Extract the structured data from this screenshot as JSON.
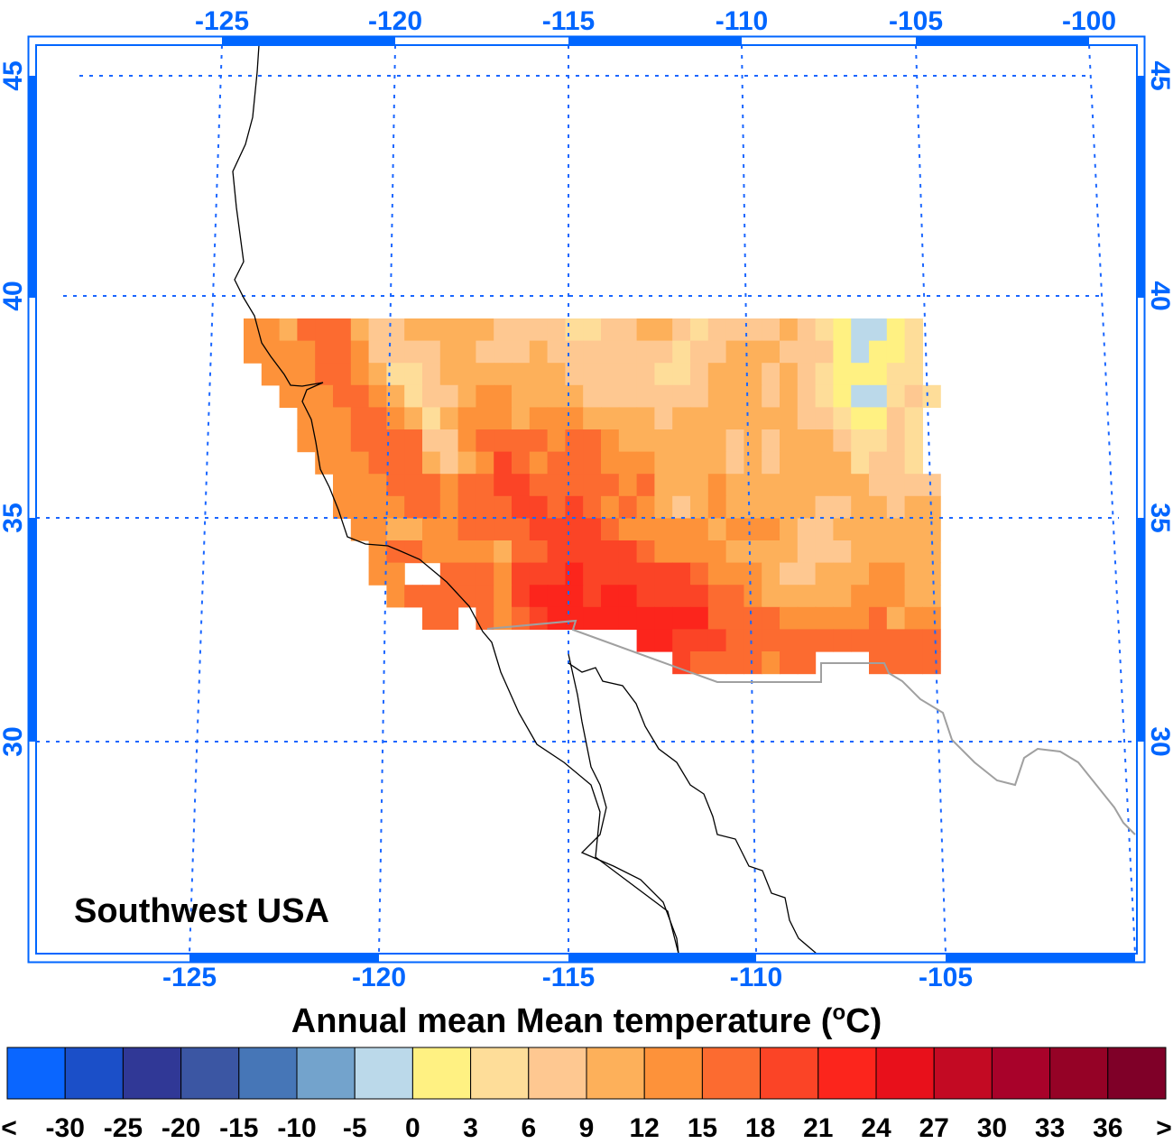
{
  "map": {
    "region_label": "Southwest USA",
    "top_lon_labels": [
      "-125",
      "-120",
      "-115",
      "-110",
      "-105",
      "-100"
    ],
    "bottom_lon_labels": [
      "-125",
      "-120",
      "-115",
      "-110",
      "-105"
    ],
    "left_lat_labels": [
      "45",
      "40",
      "35",
      "30"
    ],
    "right_lat_labels": [
      "45",
      "40",
      "35",
      "30"
    ],
    "axis_color": "#0066ff",
    "field_legend": {
      "a": "#bbd9ea",
      "y": "#fff182",
      "l": "#fedd99",
      "p": "#fec891",
      "o": "#fdb05a",
      "m": "#fd923a",
      "r": "#fc6b30",
      "R": "#fb4426",
      "X": "#fc251c"
    },
    "field_rows": [
      "mmorrroppoooooppppllppooplppppoplyaayl.",
      "mmmmrrmppppoopppoppppppplppooopppyayyl.",
      ".mmmrrmollpooooooopppppllpooopoplyyyll.",
      "..mmmrrmolppommoooopppppppooopoplyaalpl",
      "...mmmrrmolommmommmoooopooooooopplyypl.",
      "...mmmrrrrppmrrrrmrrmoooooopopooopllpl.",
      "....mmmrrropomRrmrrrmmmoooopopoooolppl.",
      ".....mmmrrrmrrRRrrrrrmrooomoooooooopppp",
      ".....mmmmrrmrrrRRrRrmrmopomoooooppoopoo",
      "......mmoommrrrrRRRRrmmmmmommmoppoooooo",
      ".......mrrmmmmorrRRRRRrmmmmoooopppooooo",
      ".......mm..rrrmRRRXRRRRRRrmmmoppooommoo",
      "........mrrrrrmRXXXRXXRRRRrrmooooommmoo",
      "..........rr.rmrRXXXXXXXXXrrrrmmmmmromm",
      "......................XXRRRrrrrrrrrrrrr",
      "........................Rrrrrmrr...rrrr"
    ]
  },
  "colorbar": {
    "title_main": "Annual mean Mean temperature (",
    "title_deg": "o",
    "title_end": "C)",
    "colors": [
      "#0a66ff",
      "#1b4fc8",
      "#303896",
      "#3b56a3",
      "#4676b7",
      "#73a3cc",
      "#bbd9ea",
      "#fff182",
      "#fedd99",
      "#fec891",
      "#fdb05a",
      "#fd923a",
      "#fc6b30",
      "#fb4426",
      "#fc251c",
      "#e8101b",
      "#c30a23",
      "#a8022a",
      "#950226",
      "#7f0028"
    ],
    "labels": [
      "<",
      "-30",
      "-25",
      "-20",
      "-15",
      "-10",
      "-5",
      "0",
      "3",
      "6",
      "9",
      "12",
      "15",
      "18",
      "21",
      "24",
      "27",
      "30",
      "33",
      "36",
      ">"
    ]
  }
}
